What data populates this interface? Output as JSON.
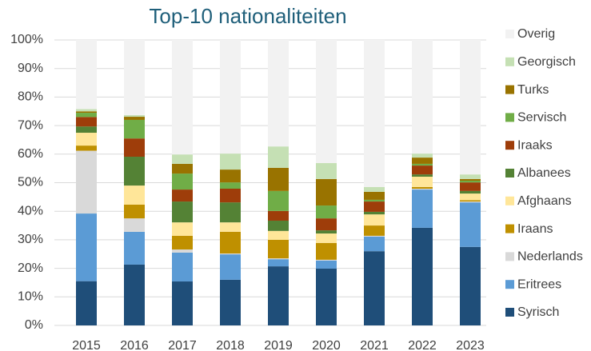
{
  "chart_data": {
    "type": "bar",
    "stacked": true,
    "title": "Top-10 nationaliteiten",
    "categories": [
      "2015",
      "2016",
      "2017",
      "2018",
      "2019",
      "2020",
      "2021",
      "2022",
      "2023"
    ],
    "ylim": [
      0,
      100
    ],
    "yticks": [
      {
        "value": 0,
        "label": "0%"
      },
      {
        "value": 10,
        "label": "10%"
      },
      {
        "value": 20,
        "label": "20%"
      },
      {
        "value": 30,
        "label": "30%"
      },
      {
        "value": 40,
        "label": "40%"
      },
      {
        "value": 50,
        "label": "50%"
      },
      {
        "value": 60,
        "label": "60%"
      },
      {
        "value": 70,
        "label": "70%"
      },
      {
        "value": 80,
        "label": "80%"
      },
      {
        "value": 90,
        "label": "90%"
      },
      {
        "value": 100,
        "label": "100%"
      }
    ],
    "grid": true,
    "legend": "right",
    "series": [
      {
        "name": "Syrisch",
        "color": "#1f4e79",
        "values": [
          15.5,
          21.3,
          15.4,
          16,
          20.7,
          19.9,
          26,
          34.2,
          27.5
        ]
      },
      {
        "name": "Eritrees",
        "color": "#5b9bd5",
        "values": [
          23.7,
          11.5,
          10.1,
          8.9,
          2.5,
          2.8,
          5.1,
          13.4,
          15.6
        ]
      },
      {
        "name": "Nederlands",
        "color": "#d9d9d9",
        "values": [
          22,
          4.7,
          1.1,
          0.3,
          0.3,
          0.3,
          0.3,
          0.3,
          0.3
        ]
      },
      {
        "name": "Iraans",
        "color": "#bf9000",
        "values": [
          1.8,
          4.8,
          4.8,
          7.6,
          6.5,
          5.9,
          3.6,
          0.6,
          0.5
        ]
      },
      {
        "name": "Afghaans",
        "color": "#ffe699",
        "values": [
          4.5,
          6.7,
          4.7,
          3.3,
          3.1,
          3.3,
          3.9,
          3.6,
          2.3
        ]
      },
      {
        "name": "Albanees",
        "color": "#548235",
        "values": [
          2.2,
          10.1,
          7.3,
          7,
          3.6,
          1.1,
          0.9,
          0.8,
          0.9
        ]
      },
      {
        "name": "Iraaks",
        "color": "#9e3d0a",
        "values": [
          3.3,
          6.4,
          4.2,
          4.8,
          3.4,
          4.2,
          3.6,
          3.1,
          3
        ]
      },
      {
        "name": "Servisch",
        "color": "#70ad47",
        "values": [
          1.5,
          6.5,
          5.6,
          2.2,
          7,
          4.5,
          0.6,
          0.6,
          0.6
        ]
      },
      {
        "name": "Turks",
        "color": "#997300",
        "values": [
          0.5,
          1.1,
          3.4,
          4.5,
          8.1,
          9.3,
          2.8,
          2.2,
          0.6
        ]
      },
      {
        "name": "Georgisch",
        "color": "#c5e0b4",
        "values": [
          0.8,
          0.6,
          3.3,
          5.6,
          7.5,
          5.6,
          1.7,
          1.4,
          1.6
        ]
      },
      {
        "name": "Overig",
        "color": "#f2f2f2",
        "values": [
          24.2,
          26.3,
          40.1,
          39.8,
          37.3,
          43.1,
          51.5,
          39.8,
          47.1
        ]
      }
    ]
  }
}
